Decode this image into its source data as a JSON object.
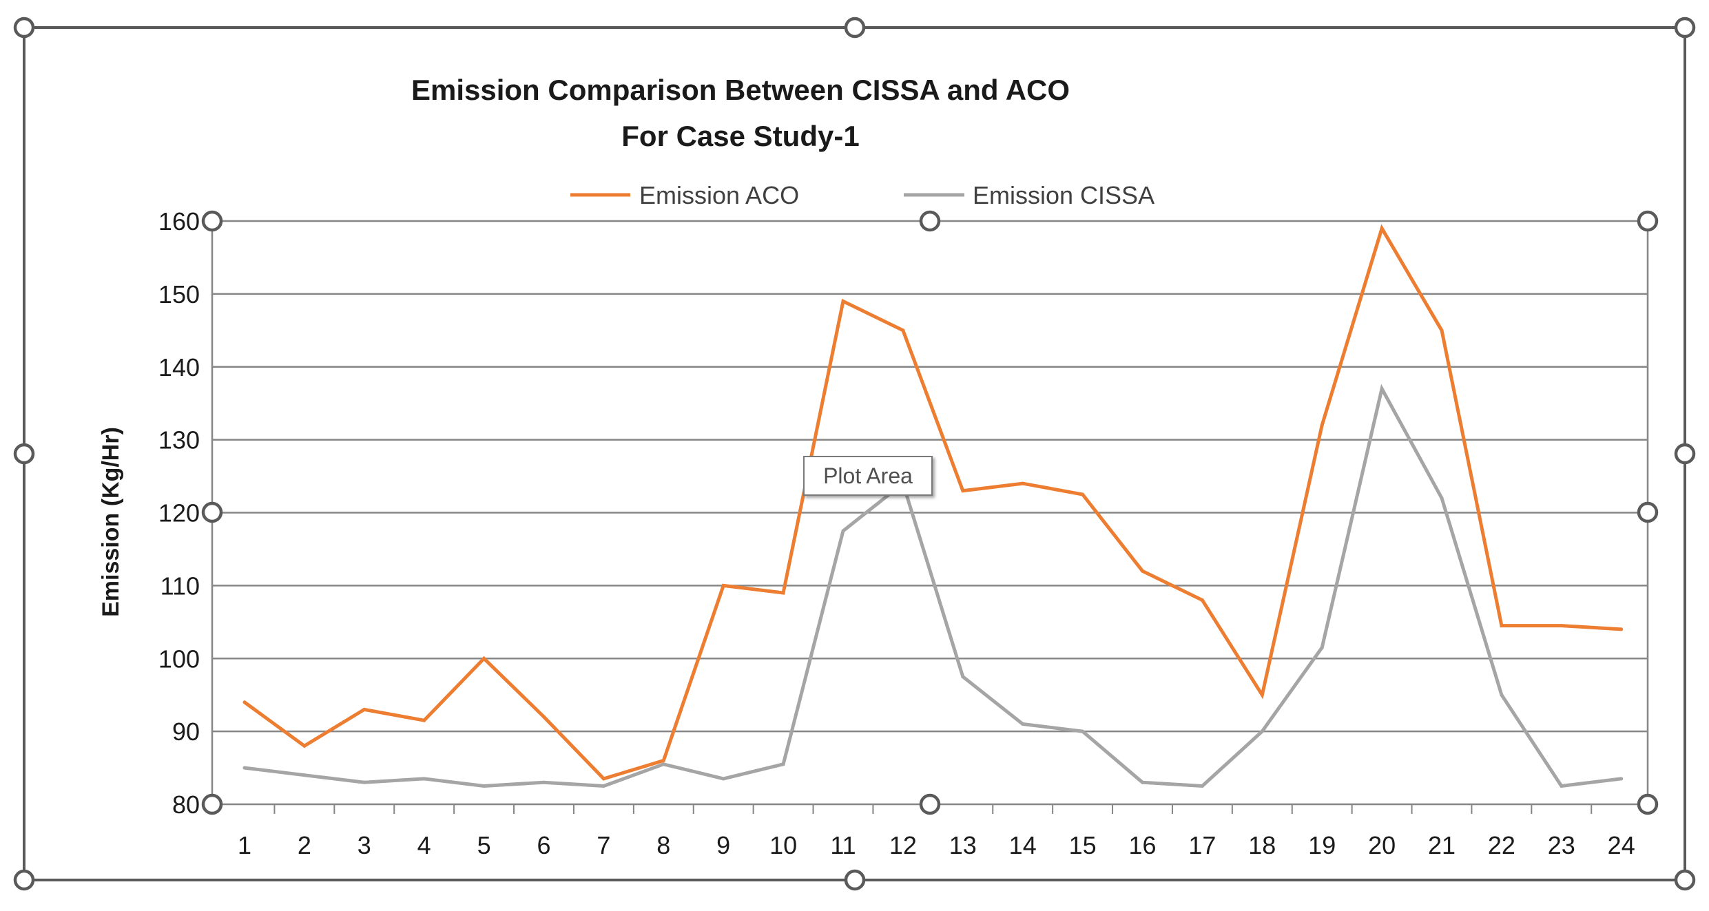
{
  "chart_data": {
    "type": "line",
    "title": "Emission Comparison Between CISSA and ACO",
    "subtitle": "For Case Study-1",
    "xlabel": "",
    "ylabel": "Emission (Kg/Hr)",
    "ylim": [
      80,
      160
    ],
    "yticks": [
      "80",
      "90",
      "100",
      "110",
      "120",
      "130",
      "140",
      "150",
      "160"
    ],
    "categories": [
      "1",
      "2",
      "3",
      "4",
      "5",
      "6",
      "7",
      "8",
      "9",
      "10",
      "11",
      "12",
      "13",
      "14",
      "15",
      "16",
      "17",
      "18",
      "19",
      "20",
      "21",
      "22",
      "23",
      "24"
    ],
    "grid": true,
    "legend_position": "top",
    "series": [
      {
        "name": "Emission ACO",
        "color": "#ED7D31",
        "values": [
          94,
          88,
          93,
          91.5,
          100,
          92,
          83.5,
          86,
          110,
          109,
          149,
          145,
          123,
          124,
          122.5,
          112,
          108,
          95,
          132,
          159,
          145,
          104.5,
          104.5,
          104
        ]
      },
      {
        "name": "Emission CISSA",
        "color": "#A5A5A5",
        "values": [
          85,
          84,
          83,
          83.5,
          82.5,
          83,
          82.5,
          85.5,
          83.5,
          85.5,
          117.5,
          124,
          97.5,
          91,
          90,
          83,
          82.5,
          90,
          101.5,
          137,
          122,
          95,
          82.5,
          83.5
        ]
      }
    ]
  },
  "tooltip": {
    "text": "Plot Area"
  },
  "colors": {
    "grid": "#868686",
    "axis_text": "#1a1a1a",
    "handle": "#5a5a5a"
  }
}
